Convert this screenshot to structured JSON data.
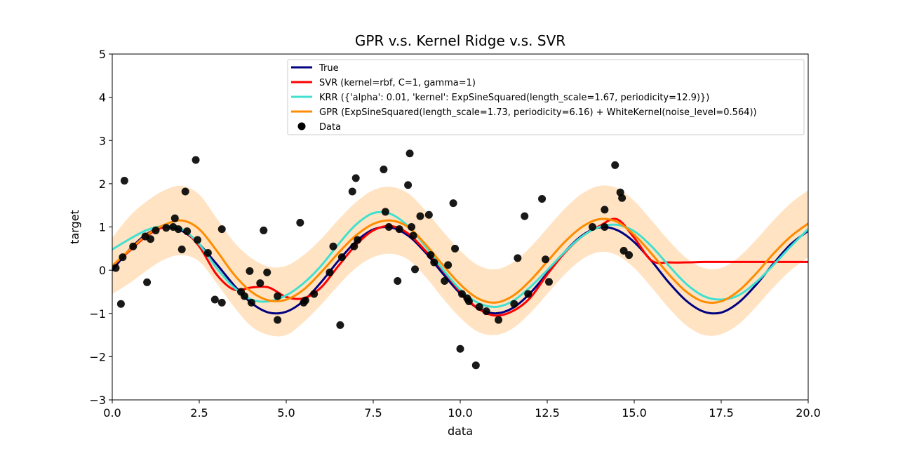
{
  "chart_data": {
    "type": "line",
    "title": "GPR v.s. Kernel Ridge v.s. SVR",
    "xlabel": "data",
    "ylabel": "target",
    "xlim": [
      0.0,
      20.0
    ],
    "ylim": [
      -3,
      5
    ],
    "x_ticks": [
      0.0,
      2.5,
      5.0,
      7.5,
      10.0,
      12.5,
      15.0,
      17.5,
      20.0
    ],
    "x_tick_labels": [
      "0.0",
      "2.5",
      "5.0",
      "7.5",
      "10.0",
      "12.5",
      "15.0",
      "17.5",
      "20.0"
    ],
    "y_ticks": [
      -3,
      -2,
      -1,
      0,
      1,
      2,
      3,
      4,
      5
    ],
    "y_tick_labels": [
      "−3",
      "−2",
      "−1",
      "0",
      "1",
      "2",
      "3",
      "4",
      "5"
    ],
    "grid": false,
    "legend_position": "top-center",
    "series": [
      {
        "name": "True",
        "kind": "line",
        "color": "#000080",
        "x": [
          0,
          0.5,
          1,
          1.5,
          2,
          2.5,
          3,
          3.5,
          4,
          4.5,
          5,
          5.5,
          6,
          6.5,
          7,
          7.5,
          8,
          8.5,
          9,
          9.5,
          10,
          10.5,
          11,
          11.5,
          12,
          12.5,
          13,
          13.5,
          14,
          14.5,
          15,
          15.5,
          16,
          16.5,
          17,
          17.5,
          18,
          18.5,
          19,
          19.5,
          20
        ],
        "y": [
          0,
          0.48,
          0.84,
          1.0,
          0.91,
          0.6,
          0.14,
          -0.35,
          -0.76,
          -0.98,
          -0.96,
          -0.71,
          -0.28,
          0.22,
          0.66,
          0.94,
          0.99,
          0.8,
          0.41,
          -0.08,
          -0.54,
          -0.88,
          -1.0,
          -0.88,
          -0.54,
          -0.07,
          0.42,
          0.8,
          0.99,
          0.93,
          0.65,
          0.21,
          -0.29,
          -0.71,
          -0.96,
          -0.98,
          -0.75,
          -0.34,
          0.15,
          0.6,
          0.91
        ]
      },
      {
        "name": "SVR (kernel=rbf, C=1, gamma=1)",
        "kind": "line",
        "color": "#ff0000",
        "x": [
          0,
          0.5,
          1,
          1.5,
          2,
          2.5,
          3,
          3.5,
          4,
          4.5,
          5,
          5.5,
          6,
          6.5,
          7,
          7.5,
          8,
          8.5,
          9,
          9.5,
          10,
          10.5,
          11,
          11.5,
          12,
          12.5,
          13,
          13.5,
          14,
          14.5,
          15,
          15.5,
          16,
          16.5,
          17,
          17.5,
          18,
          18.5,
          19,
          19.5,
          20
        ],
        "y": [
          0.1,
          0.45,
          0.8,
          1.0,
          0.95,
          0.55,
          -0.1,
          -0.45,
          -0.4,
          -0.4,
          -0.62,
          -0.65,
          -0.4,
          0.1,
          0.58,
          0.92,
          1.02,
          0.85,
          0.45,
          0.0,
          -0.5,
          -0.88,
          -1.05,
          -0.95,
          -0.65,
          -0.1,
          0.4,
          0.78,
          1.02,
          1.18,
          0.75,
          0.22,
          0.18,
          0.18,
          0.19,
          0.19,
          0.19,
          0.19,
          0.19,
          0.19,
          0.19
        ]
      },
      {
        "name": "KRR ({'alpha': 0.01, 'kernel': ExpSineSquared(length_scale=1.67, periodicity=12.9)})",
        "kind": "line",
        "color": "#40e0d0",
        "x": [
          0,
          0.5,
          1,
          1.5,
          2,
          2.5,
          3,
          3.5,
          4,
          4.5,
          5,
          5.5,
          6,
          6.5,
          7,
          7.5,
          8,
          8.5,
          9,
          9.5,
          10,
          10.5,
          11,
          11.5,
          12,
          12.5,
          13,
          13.5,
          14,
          14.5,
          15,
          15.5,
          16,
          16.5,
          17,
          17.5,
          18,
          18.5,
          19,
          19.5,
          20
        ],
        "y": [
          0.48,
          0.72,
          0.93,
          1.02,
          0.95,
          0.6,
          0.05,
          -0.4,
          -0.68,
          -0.72,
          -0.58,
          -0.3,
          0.1,
          0.6,
          1.05,
          1.32,
          1.3,
          1.02,
          0.55,
          0.02,
          -0.45,
          -0.75,
          -0.85,
          -0.72,
          -0.4,
          0.0,
          0.42,
          0.78,
          1.0,
          1.05,
          0.9,
          0.55,
          0.1,
          -0.32,
          -0.6,
          -0.68,
          -0.58,
          -0.28,
          0.12,
          0.55,
          0.95
        ]
      },
      {
        "name": "GPR (ExpSineSquared(length_scale=1.73, periodicity=6.16) + WhiteKernel(noise_level=0.564))",
        "kind": "line",
        "color": "#ff8c00",
        "x": [
          0,
          0.5,
          1,
          1.5,
          2,
          2.5,
          3,
          3.5,
          4,
          4.5,
          5,
          5.5,
          6,
          6.5,
          7,
          7.5,
          8,
          8.5,
          9,
          9.5,
          10,
          10.5,
          11,
          11.5,
          12,
          12.5,
          13,
          13.5,
          14,
          14.5,
          15,
          15.5,
          16,
          16.5,
          17,
          17.5,
          18,
          18.5,
          19,
          19.5,
          20
        ],
        "y": [
          0.1,
          0.47,
          0.82,
          1.05,
          1.15,
          0.95,
          0.45,
          -0.1,
          -0.5,
          -0.7,
          -0.68,
          -0.45,
          -0.05,
          0.4,
          0.8,
          1.07,
          1.15,
          1.0,
          0.6,
          0.12,
          -0.33,
          -0.65,
          -0.75,
          -0.6,
          -0.25,
          0.2,
          0.65,
          1.0,
          1.18,
          1.12,
          0.82,
          0.38,
          -0.1,
          -0.5,
          -0.73,
          -0.72,
          -0.48,
          -0.08,
          0.38,
          0.78,
          1.08
        ]
      },
      {
        "name": "GPR uncertainty band",
        "kind": "band",
        "color": "#ffe0bd",
        "x": [
          0,
          0.5,
          1,
          1.5,
          2,
          2.5,
          3,
          3.5,
          4,
          4.5,
          5,
          5.5,
          6,
          6.5,
          7,
          7.5,
          8,
          8.5,
          9,
          9.5,
          10,
          10.5,
          11,
          11.5,
          12,
          12.5,
          13,
          13.5,
          14,
          14.5,
          15,
          15.5,
          16,
          16.5,
          17,
          17.5,
          18,
          18.5,
          19,
          19.5,
          20
        ],
        "lower": [
          -0.55,
          -0.3,
          0.0,
          0.25,
          0.35,
          0.2,
          -0.3,
          -0.85,
          -1.3,
          -1.5,
          -1.5,
          -1.2,
          -0.8,
          -0.35,
          0.05,
          0.3,
          0.38,
          0.25,
          -0.15,
          -0.65,
          -1.1,
          -1.42,
          -1.5,
          -1.35,
          -1.0,
          -0.55,
          -0.1,
          0.25,
          0.42,
          0.35,
          0.05,
          -0.4,
          -0.88,
          -1.28,
          -1.5,
          -1.48,
          -1.25,
          -0.85,
          -0.4,
          0.0,
          0.3
        ],
        "upper": [
          0.75,
          1.25,
          1.6,
          1.85,
          1.95,
          1.75,
          1.2,
          0.65,
          0.28,
          0.08,
          0.1,
          0.35,
          0.72,
          1.17,
          1.57,
          1.85,
          1.93,
          1.78,
          1.38,
          0.9,
          0.45,
          0.12,
          0.02,
          0.17,
          0.52,
          0.97,
          1.42,
          1.77,
          1.95,
          1.9,
          1.6,
          1.15,
          0.68,
          0.28,
          0.05,
          0.05,
          0.3,
          0.7,
          1.15,
          1.55,
          1.85
        ]
      },
      {
        "name": "Data",
        "kind": "scatter",
        "color": "#000000",
        "x": [
          0.1,
          0.3,
          0.25,
          0.35,
          0.6,
          0.95,
          1.0,
          1.1,
          1.25,
          1.55,
          1.75,
          1.8,
          1.9,
          2.0,
          2.15,
          2.1,
          2.4,
          2.45,
          2.75,
          2.95,
          3.15,
          3.15,
          3.7,
          3.8,
          3.95,
          4.0,
          4.25,
          4.35,
          4.45,
          4.75,
          4.75,
          5.4,
          5.5,
          5.55,
          5.8,
          6.25,
          6.35,
          6.55,
          6.6,
          6.9,
          6.95,
          7.0,
          7.05,
          7.8,
          7.85,
          7.95,
          8.2,
          8.25,
          8.5,
          8.55,
          8.6,
          8.65,
          8.7,
          8.85,
          9.1,
          9.15,
          9.25,
          9.55,
          9.65,
          9.8,
          9.85,
          10.0,
          10.05,
          10.2,
          10.25,
          10.45,
          10.55,
          10.75,
          11.1,
          11.55,
          11.65,
          11.85,
          11.95,
          12.35,
          12.45,
          12.55,
          13.8,
          14.15,
          14.15,
          14.45,
          14.6,
          14.65,
          14.7,
          14.85
        ],
        "y": [
          0.05,
          0.3,
          -0.78,
          2.07,
          0.55,
          0.78,
          -0.28,
          0.72,
          0.92,
          0.98,
          1.0,
          1.2,
          0.95,
          0.48,
          0.9,
          1.82,
          2.55,
          0.7,
          0.4,
          -0.68,
          -0.75,
          0.95,
          -0.5,
          -0.6,
          -0.02,
          -0.75,
          -0.3,
          0.92,
          -0.05,
          -0.6,
          -1.15,
          1.1,
          -0.75,
          -0.7,
          -0.55,
          -0.05,
          0.55,
          -1.27,
          0.3,
          1.82,
          0.55,
          2.13,
          0.7,
          2.33,
          1.35,
          1.0,
          -0.25,
          0.95,
          1.97,
          2.7,
          1.0,
          0.8,
          0.02,
          1.25,
          1.28,
          0.35,
          0.18,
          -0.25,
          0.12,
          1.55,
          0.5,
          -1.82,
          -0.55,
          -0.65,
          -0.72,
          -2.2,
          -0.85,
          -0.95,
          -1.15,
          -0.78,
          0.28,
          1.25,
          -0.55,
          1.65,
          0.25,
          -0.27,
          1.0,
          1.4,
          1.0,
          2.43,
          1.8,
          1.67,
          0.45,
          0.35
        ]
      }
    ]
  }
}
